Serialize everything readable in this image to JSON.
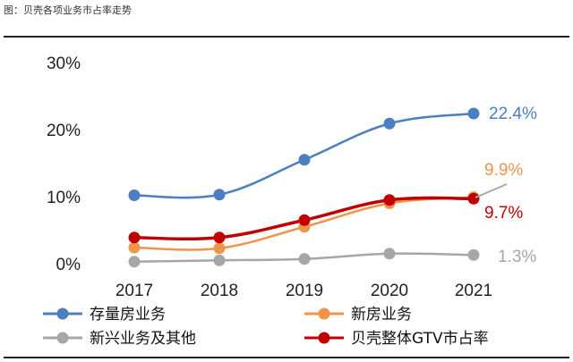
{
  "figure": {
    "caption": "图：贝壳各项业务市占率走势"
  },
  "chart_data": {
    "type": "line",
    "categories": [
      "2017",
      "2018",
      "2019",
      "2020",
      "2021"
    ],
    "yticks": [
      "0%",
      "10%",
      "20%",
      "30%"
    ],
    "ylim": [
      0,
      30
    ],
    "grid": false,
    "legend_position": "bottom",
    "series": [
      {
        "name": "存量房业务",
        "color": "#4a7fc1",
        "values": [
          10.2,
          10.3,
          15.5,
          20.9,
          22.4
        ],
        "end_label": "22.4%"
      },
      {
        "name": "新房业务",
        "color": "#f0944a",
        "values": [
          2.4,
          2.3,
          5.5,
          9.0,
          9.9
        ],
        "end_label": "9.9%"
      },
      {
        "name": "新兴业务及其他",
        "color": "#a6a6a6",
        "values": [
          0.3,
          0.5,
          0.7,
          1.5,
          1.3
        ],
        "end_label": "1.3%"
      },
      {
        "name": "贝壳整体GTV市占率",
        "color": "#c00000",
        "values": [
          3.9,
          3.9,
          6.5,
          9.5,
          9.7
        ],
        "end_label": "9.7%"
      }
    ]
  }
}
